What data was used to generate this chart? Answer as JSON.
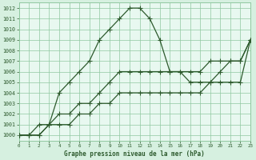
{
  "title": "Graphe pression niveau de la mer (hPa)",
  "bg_color": "#d6f0e0",
  "plot_bg_color": "#e8f8f0",
  "grid_color": "#90c8a0",
  "line_color": "#2d5a2d",
  "marker": "+",
  "markersize": 4,
  "linewidth": 0.9,
  "xlim": [
    0,
    23
  ],
  "ylim": [
    999.5,
    1012.5
  ],
  "xticks": [
    0,
    1,
    2,
    3,
    4,
    5,
    6,
    7,
    8,
    9,
    10,
    11,
    12,
    13,
    14,
    15,
    16,
    17,
    18,
    19,
    20,
    21,
    22,
    23
  ],
  "yticks": [
    1000,
    1001,
    1002,
    1003,
    1004,
    1005,
    1006,
    1007,
    1008,
    1009,
    1010,
    1011,
    1012
  ],
  "series": [
    [
      1000,
      1000,
      1000,
      1001,
      1004,
      1005,
      1006,
      1007,
      1009,
      1010,
      1011,
      1012,
      1012,
      1011,
      1009,
      1006,
      1006,
      1005,
      1005,
      1005,
      1006,
      1007,
      1007,
      1009
    ],
    [
      1000,
      1000,
      1001,
      1001,
      1002,
      1002,
      1003,
      1003,
      1004,
      1005,
      1006,
      1006,
      1006,
      1006,
      1006,
      1006,
      1006,
      1006,
      1006,
      1007,
      1007,
      1007,
      1007,
      1009
    ],
    [
      1000,
      1000,
      1000,
      1001,
      1001,
      1001,
      1002,
      1002,
      1003,
      1003,
      1004,
      1004,
      1004,
      1004,
      1004,
      1004,
      1004,
      1004,
      1004,
      1005,
      1005,
      1005,
      1005,
      1009
    ]
  ]
}
